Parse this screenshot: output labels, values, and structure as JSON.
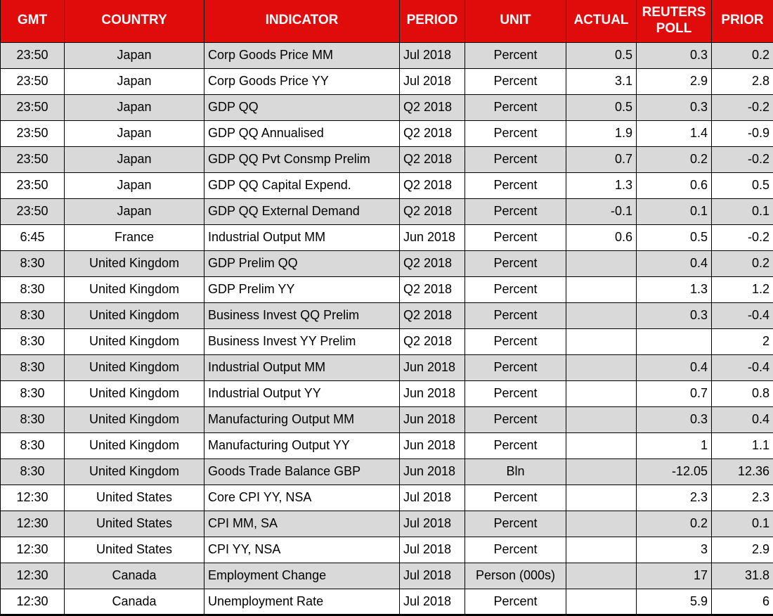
{
  "chart_data": {
    "type": "table",
    "columns": [
      "GMT",
      "COUNTRY",
      "INDICATOR",
      "PERIOD",
      "UNIT",
      "ACTUAL",
      "REUTERS POLL",
      "PRIOR"
    ],
    "column_keys": [
      "gmt",
      "country",
      "indicator",
      "period",
      "unit",
      "actual",
      "reuters-poll",
      "prior"
    ],
    "rows": [
      [
        "23:50",
        "Japan",
        "Corp Goods Price MM",
        "Jul 2018",
        "Percent",
        "0.5",
        "0.3",
        "0.2"
      ],
      [
        "23:50",
        "Japan",
        "Corp Goods Price YY",
        "Jul 2018",
        "Percent",
        "3.1",
        "2.9",
        "2.8"
      ],
      [
        "23:50",
        "Japan",
        "GDP QQ",
        "Q2 2018",
        "Percent",
        "0.5",
        "0.3",
        "-0.2"
      ],
      [
        "23:50",
        "Japan",
        "GDP QQ Annualised",
        "Q2 2018",
        "Percent",
        "1.9",
        "1.4",
        "-0.9"
      ],
      [
        "23:50",
        "Japan",
        "GDP QQ Pvt Consmp Prelim",
        "Q2 2018",
        "Percent",
        "0.7",
        "0.2",
        "-0.2"
      ],
      [
        "23:50",
        "Japan",
        "GDP QQ Capital Expend.",
        "Q2 2018",
        "Percent",
        "1.3",
        "0.6",
        "0.5"
      ],
      [
        "23:50",
        "Japan",
        "GDP QQ External Demand",
        "Q2 2018",
        "Percent",
        "-0.1",
        "0.1",
        "0.1"
      ],
      [
        "6:45",
        "France",
        "Industrial Output MM",
        "Jun 2018",
        "Percent",
        "0.6",
        "0.5",
        "-0.2"
      ],
      [
        "8:30",
        "United Kingdom",
        "GDP Prelim QQ",
        "Q2 2018",
        "Percent",
        "",
        "0.4",
        "0.2"
      ],
      [
        "8:30",
        "United Kingdom",
        "GDP Prelim YY",
        "Q2 2018",
        "Percent",
        "",
        "1.3",
        "1.2"
      ],
      [
        "8:30",
        "United Kingdom",
        "Business Invest QQ Prelim",
        "Q2 2018",
        "Percent",
        "",
        "0.3",
        "-0.4"
      ],
      [
        "8:30",
        "United Kingdom",
        "Business Invest YY Prelim",
        "Q2 2018",
        "Percent",
        "",
        "",
        "2"
      ],
      [
        "8:30",
        "United Kingdom",
        "Industrial Output MM",
        "Jun 2018",
        "Percent",
        "",
        "0.4",
        "-0.4"
      ],
      [
        "8:30",
        "United Kingdom",
        "Industrial Output YY",
        "Jun 2018",
        "Percent",
        "",
        "0.7",
        "0.8"
      ],
      [
        "8:30",
        "United Kingdom",
        "Manufacturing Output MM",
        "Jun 2018",
        "Percent",
        "",
        "0.3",
        "0.4"
      ],
      [
        "8:30",
        "United Kingdom",
        "Manufacturing Output YY",
        "Jun 2018",
        "Percent",
        "",
        "1",
        "1.1"
      ],
      [
        "8:30",
        "United Kingdom",
        "Goods Trade Balance GBP",
        "Jun 2018",
        "Bln",
        "",
        "-12.05",
        "12.36"
      ],
      [
        "12:30",
        "United States",
        "Core CPI YY, NSA",
        "Jul 2018",
        "Percent",
        "",
        "2.3",
        "2.3"
      ],
      [
        "12:30",
        "United States",
        "CPI MM, SA",
        "Jul 2018",
        "Percent",
        "",
        "0.2",
        "0.1"
      ],
      [
        "12:30",
        "United States",
        "CPI YY, NSA",
        "Jul 2018",
        "Percent",
        "",
        "3",
        "2.9"
      ],
      [
        "12:30",
        "Canada",
        "Employment Change",
        "Jul 2018",
        "Person (000s)",
        "",
        "17",
        "31.8"
      ],
      [
        "12:30",
        "Canada",
        "Unemployment Rate",
        "Jul 2018",
        "Percent",
        "",
        "5.9",
        "6"
      ]
    ],
    "layout_hints": {
      "header_rows": 1,
      "striped": "odd-rows-gray",
      "grid": "on"
    }
  },
  "colors": {
    "header_bg": "#E00C0C",
    "header_text": "#FFFFFF",
    "row_alt_bg": "#D9D9D9",
    "row_bg": "#FFFFFF",
    "border": "#000000",
    "text": "#000000"
  }
}
